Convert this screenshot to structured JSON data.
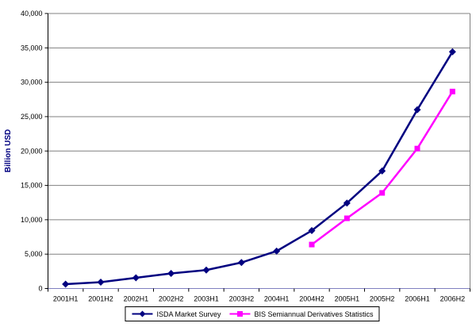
{
  "chart_data": {
    "type": "line",
    "ylabel": "Billion USD",
    "categories": [
      "2001H1",
      "2001H2",
      "2002H1",
      "2002H2",
      "2003H1",
      "2003H2",
      "2004H1",
      "2004H2",
      "2005H1",
      "2005H2",
      "2006H1",
      "2006H2"
    ],
    "series": [
      {
        "name": "ISDA Market Survey",
        "color": "#000080",
        "marker": "diamond",
        "values": [
          631.5,
          918.9,
          1563.5,
          2191.6,
          2687.9,
          3779.4,
          5441.9,
          8422.3,
          12429.9,
          17096.1,
          26005.7,
          34422.8
        ]
      },
      {
        "name": "BIS Semiannual Derivatives Statistics",
        "color": "#FF00FF",
        "marker": "square",
        "values": [
          null,
          null,
          null,
          null,
          null,
          null,
          null,
          6395.7,
          10211.4,
          13908.3,
          20352.3,
          28650.3
        ]
      }
    ],
    "ylim": [
      0,
      40000
    ],
    "ytick_step": 5000,
    "ytick_labels": [
      "0",
      "5,000",
      "10,000",
      "15,000",
      "20,000",
      "25,000",
      "30,000",
      "35,000",
      "40,000"
    ],
    "grid": true,
    "legend_position": "bottom",
    "gridline_color": "#808080",
    "axis_color": "#000000",
    "x_axis_line_color": "#000080",
    "tick_label_color": "#000000"
  }
}
